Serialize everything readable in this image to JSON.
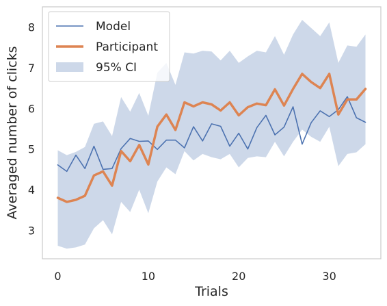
{
  "chart_data": {
    "type": "line",
    "xlabel": "Trials",
    "ylabel": "Averaged number of clicks",
    "xlim": [
      -1.7,
      35.7
    ],
    "ylim": [
      2.3,
      8.5
    ],
    "x_ticks": [
      0,
      10,
      20,
      30
    ],
    "y_ticks": [
      3,
      4,
      5,
      6,
      7,
      8
    ],
    "grid": false,
    "legend_position": "top-left",
    "x": [
      0,
      1,
      2,
      3,
      4,
      5,
      6,
      7,
      8,
      9,
      10,
      11,
      12,
      13,
      14,
      15,
      16,
      17,
      18,
      19,
      20,
      21,
      22,
      23,
      24,
      25,
      26,
      27,
      28,
      29,
      30,
      31,
      32,
      33,
      34
    ],
    "series": [
      {
        "name": "Model",
        "kind": "line",
        "color": "#4c72b0",
        "values": [
          4.61,
          4.45,
          4.85,
          4.52,
          5.07,
          4.5,
          4.52,
          5.01,
          5.26,
          5.19,
          5.2,
          4.99,
          5.22,
          5.22,
          5.03,
          5.55,
          5.2,
          5.62,
          5.56,
          5.07,
          5.39,
          5.0,
          5.53,
          5.83,
          5.35,
          5.54,
          6.04,
          5.12,
          5.65,
          5.94,
          5.8,
          5.97,
          6.29,
          5.77,
          5.66
        ]
      },
      {
        "name": "Participant",
        "kind": "line",
        "color": "#dd8452",
        "values": [
          3.8,
          3.7,
          3.75,
          3.85,
          4.35,
          4.45,
          4.1,
          4.95,
          4.7,
          5.1,
          4.62,
          5.55,
          5.85,
          5.47,
          6.15,
          6.05,
          6.15,
          6.1,
          5.95,
          6.15,
          5.83,
          6.03,
          6.12,
          6.08,
          6.47,
          6.07,
          6.48,
          6.85,
          6.65,
          6.5,
          6.85,
          5.85,
          6.22,
          6.22,
          6.48
        ]
      },
      {
        "name": "95% CI",
        "kind": "band",
        "color": "#4c72b0",
        "opacity": 0.28,
        "lower": [
          2.62,
          2.55,
          2.58,
          2.65,
          3.05,
          3.25,
          2.9,
          3.7,
          3.45,
          4.0,
          3.42,
          4.2,
          4.55,
          4.38,
          4.95,
          4.72,
          4.88,
          4.8,
          4.75,
          4.88,
          4.55,
          4.78,
          4.82,
          4.8,
          5.18,
          4.82,
          5.18,
          5.48,
          5.3,
          5.18,
          5.55,
          4.58,
          4.88,
          4.92,
          5.12
        ],
        "upper": [
          4.97,
          4.85,
          4.93,
          5.05,
          5.62,
          5.68,
          5.32,
          6.28,
          5.92,
          6.38,
          5.82,
          6.88,
          7.12,
          6.58,
          7.38,
          7.35,
          7.42,
          7.4,
          7.18,
          7.42,
          7.12,
          7.28,
          7.42,
          7.38,
          7.78,
          7.32,
          7.82,
          8.18,
          7.98,
          7.78,
          8.12,
          7.12,
          7.55,
          7.52,
          7.82
        ]
      }
    ]
  }
}
